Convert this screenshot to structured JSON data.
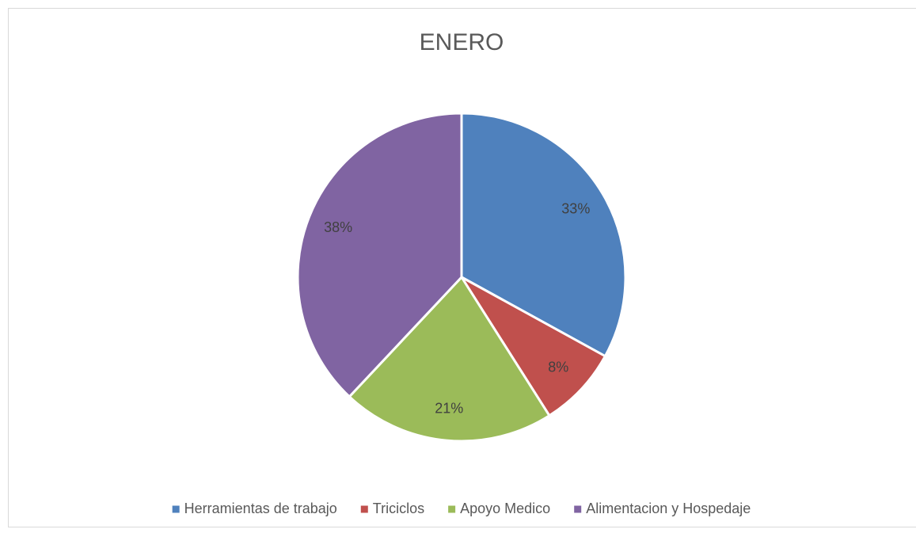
{
  "chart_data": {
    "type": "pie",
    "title": "ENERO",
    "categories": [
      "Herramientas de trabajo",
      "Triciclos",
      "Apoyo Medico",
      "Alimentacion y Hospedaje"
    ],
    "values": [
      33,
      8,
      21,
      38
    ],
    "value_labels": [
      "33%",
      "8%",
      "21%",
      "38%"
    ],
    "colors": [
      "#4f81bd",
      "#c0504d",
      "#9bbb59",
      "#8064a2"
    ],
    "legend": "bottom"
  }
}
